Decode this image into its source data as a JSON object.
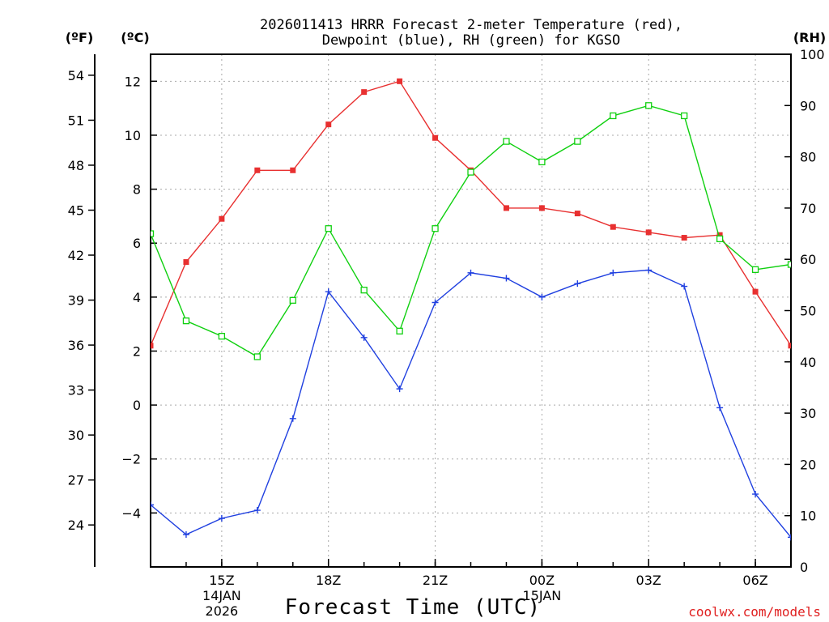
{
  "chart_data": {
    "type": "line",
    "title_line1": "2026011413 HRRR Forecast 2-meter Temperature (red),",
    "title_line2": "Dewpoint (blue), RH (green) for KGSO",
    "unit_labels": {
      "fahrenheit": "(ºF)",
      "celsius": "(ºC)",
      "rh": "(RH)"
    },
    "xlabel": "Forecast Time (UTC)",
    "credit": "coolwx.com/models",
    "x_hours": [
      13,
      14,
      15,
      16,
      17,
      18,
      19,
      20,
      21,
      22,
      23,
      24,
      25,
      26,
      27,
      28,
      29,
      30,
      31
    ],
    "xlim": [
      13,
      31
    ],
    "x_ticks": [
      {
        "hour": 15,
        "label": "15Z",
        "sub1": "14JAN",
        "sub2": "2026"
      },
      {
        "hour": 18,
        "label": "18Z",
        "sub1": "",
        "sub2": ""
      },
      {
        "hour": 21,
        "label": "21Z",
        "sub1": "",
        "sub2": ""
      },
      {
        "hour": 24,
        "label": "00Z",
        "sub1": "15JAN",
        "sub2": ""
      },
      {
        "hour": 27,
        "label": "03Z",
        "sub1": "",
        "sub2": ""
      },
      {
        "hour": 30,
        "label": "06Z",
        "sub1": "",
        "sub2": ""
      }
    ],
    "celsius_axis": {
      "range": [
        -6,
        13
      ],
      "ticks": [
        "12",
        "10",
        "8",
        "6",
        "4",
        "2",
        "0",
        "−2",
        "−4"
      ],
      "tick_values": [
        12,
        10,
        8,
        6,
        4,
        2,
        0,
        -2,
        -4
      ]
    },
    "fahrenheit_axis": {
      "ticks": [
        "54",
        "51",
        "48",
        "45",
        "42",
        "39",
        "36",
        "33",
        "30",
        "27",
        "24"
      ],
      "tick_values": [
        54,
        51,
        48,
        45,
        42,
        39,
        36,
        33,
        30,
        27,
        24
      ]
    },
    "rh_axis": {
      "range": [
        0,
        100
      ],
      "ticks": [
        "100",
        "90",
        "80",
        "70",
        "60",
        "50",
        "40",
        "30",
        "20",
        "10",
        "0"
      ],
      "tick_values": [
        100,
        90,
        80,
        70,
        60,
        50,
        40,
        30,
        20,
        10,
        0
      ]
    },
    "series": [
      {
        "name": "Temperature",
        "units": "C",
        "color": "#e83030",
        "values": [
          2.2,
          5.3,
          6.9,
          8.7,
          8.7,
          10.4,
          11.6,
          12.0,
          9.9,
          8.7,
          7.3,
          7.3,
          7.1,
          6.6,
          6.4,
          6.2,
          6.3,
          4.2,
          2.2
        ]
      },
      {
        "name": "Dewpoint",
        "units": "C",
        "color": "#2040e0",
        "values": [
          -3.7,
          -4.8,
          -4.2,
          -3.9,
          -0.5,
          4.2,
          2.5,
          0.6,
          3.8,
          4.9,
          4.7,
          4.0,
          4.5,
          4.9,
          5.0,
          4.4,
          -0.1,
          -3.3,
          -4.9
        ]
      },
      {
        "name": "RH",
        "units": "%",
        "color": "#10d010",
        "values": [
          65,
          48,
          45,
          41,
          52,
          66,
          54,
          46,
          66,
          77,
          83,
          79,
          83,
          88,
          90,
          88,
          64,
          58,
          59
        ]
      }
    ]
  }
}
